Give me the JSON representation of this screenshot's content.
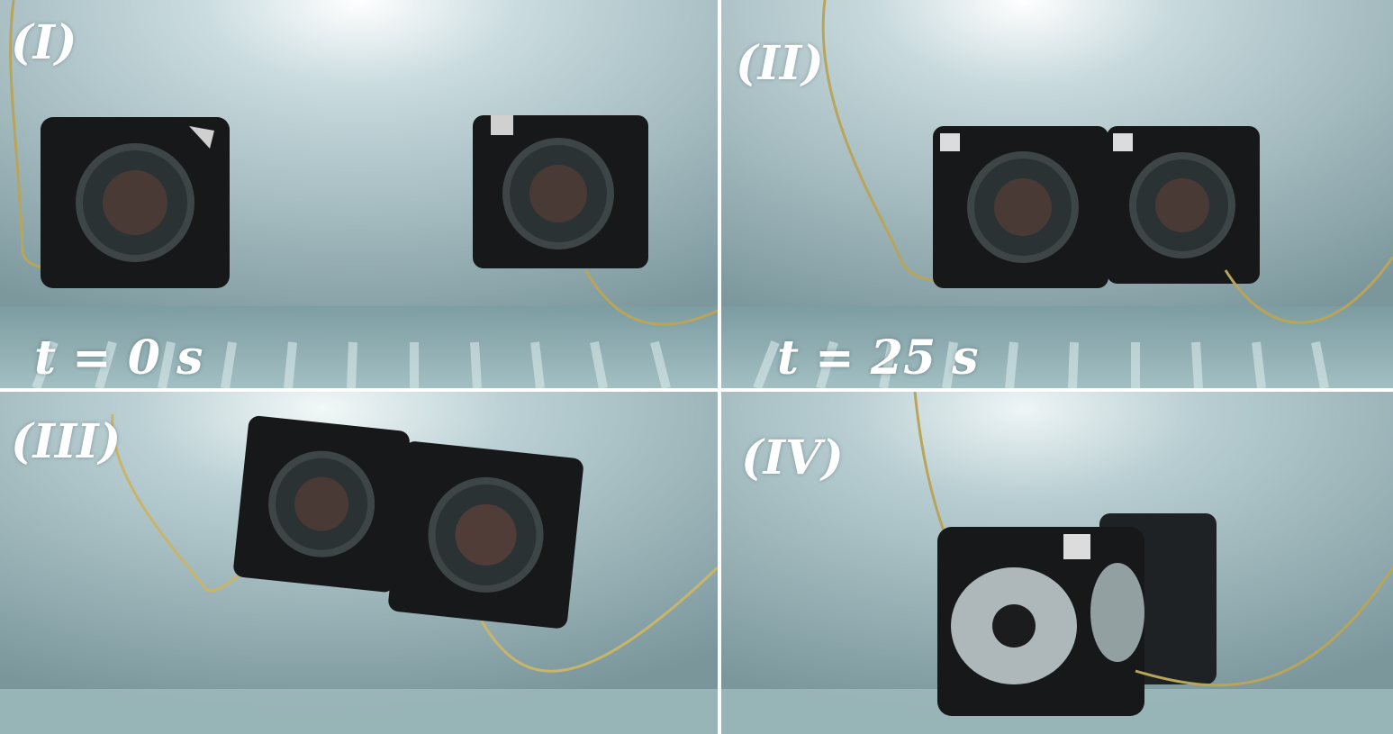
{
  "panels": [
    {
      "label": "(I)",
      "time": "t = 0 s"
    },
    {
      "label": "(II)",
      "time": "t = 25 s"
    },
    {
      "label": "(III)",
      "time": ""
    },
    {
      "label": "(IV)",
      "time": ""
    }
  ],
  "colors": {
    "water": "#8fa9ad",
    "water_dark": "#5f7b82",
    "light": "#ffffff",
    "robot_frame": "#16181a",
    "tether": "#b9a55a"
  }
}
